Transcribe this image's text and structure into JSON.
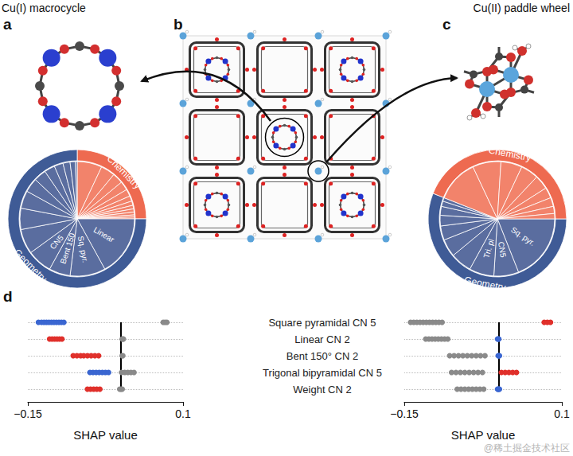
{
  "panels": {
    "a": {
      "letter": "a",
      "title": "Cu(I) macrocycle"
    },
    "b": {
      "letter": "b"
    },
    "c": {
      "letter": "c",
      "title": "Cu(II) paddle wheel"
    },
    "d": {
      "letter": "d"
    }
  },
  "watermark": "@稀土掘金技术社区",
  "chart_data": [
    {
      "type": "pie",
      "rings": [
        {
          "categories": [
            null,
            null,
            null,
            null,
            null,
            null,
            null,
            null,
            null,
            null,
            null,
            null,
            "Linear",
            "Sq. pyr.",
            "Bent 150",
            "CN5",
            null,
            null,
            null,
            null,
            null,
            null,
            null,
            null,
            null,
            null
          ],
          "values": [
            7,
            4,
            3,
            2.5,
            2,
            1.5,
            1.2,
            1,
            0.9,
            0.8,
            0.6,
            0.5,
            17,
            10,
            6,
            7,
            7,
            6,
            5,
            4,
            3.5,
            3,
            2.5,
            2,
            1.5,
            0.5
          ],
          "colors": [
            "#f2836b",
            "#f2836b",
            "#f2836b",
            "#f2836b",
            "#f2836b",
            "#f2836b",
            "#f2836b",
            "#f2836b",
            "#f2836b",
            "#f2836b",
            "#f2836b",
            "#f2836b",
            "#5a6d9f",
            "#5a6d9f",
            "#5a6d9f",
            "#5a6d9f",
            "#5a6d9f",
            "#5a6d9f",
            "#5a6d9f",
            "#5a6d9f",
            "#5a6d9f",
            "#5a6d9f",
            "#5a6d9f",
            "#5a6d9f",
            "#5a6d9f",
            "#5a6d9f"
          ]
        },
        {
          "categories": [
            "Chemistry",
            "Geometry"
          ],
          "values": [
            25,
            75
          ],
          "colors": [
            "#ee6a50",
            "#3f5b96"
          ]
        }
      ]
    },
    {
      "type": "pie",
      "rings": [
        {
          "categories": [
            "Sq. pyr.",
            "CN5",
            "Tri. pl",
            null,
            null,
            null,
            null,
            null,
            null,
            null,
            null,
            null,
            null,
            null,
            null,
            null,
            null,
            null,
            null
          ],
          "values": [
            19,
            7,
            7,
            6,
            5,
            4,
            3,
            2.5,
            1.5,
            1,
            12,
            8,
            6,
            5,
            4,
            3,
            2.5,
            2,
            1.5
          ],
          "colors": [
            "#5a6d9f",
            "#5a6d9f",
            "#5a6d9f",
            "#5a6d9f",
            "#5a6d9f",
            "#5a6d9f",
            "#5a6d9f",
            "#5a6d9f",
            "#5a6d9f",
            "#5a6d9f",
            "#f2836b",
            "#f2836b",
            "#f2836b",
            "#f2836b",
            "#f2836b",
            "#f2836b",
            "#f2836b",
            "#f2836b",
            "#f2836b"
          ]
        },
        {
          "categories": [
            "Geometry",
            "Chemistry"
          ],
          "values": [
            56,
            44
          ],
          "colors": [
            "#3f5b96",
            "#ee6a50"
          ]
        }
      ]
    },
    {
      "type": "scatter",
      "categories": [
        "Square pyramidal CN 5",
        "Linear CN 2",
        "Bent 150° CN 2",
        "Trigonal bipyramidal CN 5",
        "Weight CN 2"
      ],
      "xlim": [
        -0.15,
        0.1
      ],
      "xticks": [
        {
          "value": -0.15,
          "label": "−0.15"
        },
        0.1
      ],
      "xlabel": "SHAP value",
      "reference_line": 0,
      "grid": true,
      "series": [
        {
          "color": "#8a8a8a",
          "values": [
            [
              0.068,
              "Square pyramidal CN 5"
            ],
            [
              0.071,
              "Square pyramidal CN 5"
            ],
            [
              0.074,
              "Square pyramidal CN 5"
            ],
            [
              0.002,
              "Linear CN 2"
            ],
            [
              0.003,
              "Linear CN 2"
            ],
            [
              0.004,
              "Linear CN 2"
            ],
            [
              0.002,
              "Bent 150° CN 2"
            ],
            [
              0.003,
              "Bent 150° CN 2"
            ],
            [
              0.001,
              "Trigonal bipyramidal CN 5"
            ],
            [
              0.006,
              "Trigonal bipyramidal CN 5"
            ],
            [
              0.011,
              "Trigonal bipyramidal CN 5"
            ],
            [
              0.016,
              "Trigonal bipyramidal CN 5"
            ],
            [
              0.021,
              "Trigonal bipyramidal CN 5"
            ],
            [
              -0.002,
              "Weight CN 2"
            ],
            [
              0,
              "Weight CN 2"
            ],
            [
              0.002,
              "Weight CN 2"
            ]
          ]
        },
        {
          "color": "#3a66d1",
          "values": [
            [
              -0.133,
              "Square pyramidal CN 5"
            ],
            [
              -0.128,
              "Square pyramidal CN 5"
            ],
            [
              -0.124,
              "Square pyramidal CN 5"
            ],
            [
              -0.12,
              "Square pyramidal CN 5"
            ],
            [
              -0.116,
              "Square pyramidal CN 5"
            ],
            [
              -0.112,
              "Square pyramidal CN 5"
            ],
            [
              -0.108,
              "Square pyramidal CN 5"
            ],
            [
              -0.104,
              "Square pyramidal CN 5"
            ],
            [
              -0.1,
              "Square pyramidal CN 5"
            ],
            [
              -0.096,
              "Square pyramidal CN 5"
            ],
            [
              -0.092,
              "Square pyramidal CN 5"
            ],
            [
              -0.05,
              "Trigonal bipyramidal CN 5"
            ],
            [
              -0.045,
              "Trigonal bipyramidal CN 5"
            ],
            [
              -0.04,
              "Trigonal bipyramidal CN 5"
            ],
            [
              -0.035,
              "Trigonal bipyramidal CN 5"
            ],
            [
              -0.03,
              "Trigonal bipyramidal CN 5"
            ],
            [
              -0.025,
              "Trigonal bipyramidal CN 5"
            ],
            [
              -0.02,
              "Trigonal bipyramidal CN 5"
            ]
          ]
        },
        {
          "color": "#e0302b",
          "values": [
            [
              -0.115,
              "Linear CN 2"
            ],
            [
              -0.111,
              "Linear CN 2"
            ],
            [
              -0.107,
              "Linear CN 2"
            ],
            [
              -0.103,
              "Linear CN 2"
            ],
            [
              -0.099,
              "Linear CN 2"
            ],
            [
              -0.095,
              "Linear CN 2"
            ],
            [
              -0.077,
              "Bent 150° CN 2"
            ],
            [
              -0.071,
              "Bent 150° CN 2"
            ],
            [
              -0.065,
              "Bent 150° CN 2"
            ],
            [
              -0.06,
              "Bent 150° CN 2"
            ],
            [
              -0.054,
              "Bent 150° CN 2"
            ],
            [
              -0.048,
              "Bent 150° CN 2"
            ],
            [
              -0.042,
              "Bent 150° CN 2"
            ],
            [
              -0.036,
              "Bent 150° CN 2"
            ],
            [
              -0.054,
              "Weight CN 2"
            ],
            [
              -0.049,
              "Weight CN 2"
            ],
            [
              -0.044,
              "Weight CN 2"
            ],
            [
              -0.039,
              "Weight CN 2"
            ],
            [
              -0.034,
              "Weight CN 2"
            ]
          ]
        }
      ]
    },
    {
      "type": "scatter",
      "categories": [
        "Square pyramidal CN 5",
        "Linear CN 2",
        "Bent 150° CN 2",
        "Trigonal bipyramidal CN 5",
        "Weight CN 2"
      ],
      "xlim": [
        -0.15,
        0.1
      ],
      "xticks": [
        {
          "value": -0.15,
          "label": "−0.15"
        },
        0.1
      ],
      "xlabel": "SHAP value",
      "reference_line": 0,
      "grid": true,
      "tick_labels": "x",
      "series": [
        {
          "color": "#8a8a8a",
          "values": [
            [
              -0.14,
              "Square pyramidal CN 5"
            ],
            [
              -0.135,
              "Square pyramidal CN 5"
            ],
            [
              -0.13,
              "Square pyramidal CN 5"
            ],
            [
              -0.125,
              "Square pyramidal CN 5"
            ],
            [
              -0.12,
              "Square pyramidal CN 5"
            ],
            [
              -0.115,
              "Square pyramidal CN 5"
            ],
            [
              -0.11,
              "Square pyramidal CN 5"
            ],
            [
              -0.105,
              "Square pyramidal CN 5"
            ],
            [
              -0.1,
              "Square pyramidal CN 5"
            ],
            [
              -0.095,
              "Square pyramidal CN 5"
            ],
            [
              -0.09,
              "Square pyramidal CN 5"
            ],
            [
              -0.116,
              "Linear CN 2"
            ],
            [
              -0.111,
              "Linear CN 2"
            ],
            [
              -0.106,
              "Linear CN 2"
            ],
            [
              -0.101,
              "Linear CN 2"
            ],
            [
              -0.096,
              "Linear CN 2"
            ],
            [
              -0.091,
              "Linear CN 2"
            ],
            [
              -0.086,
              "Linear CN 2"
            ],
            [
              -0.081,
              "Linear CN 2"
            ],
            [
              -0.078,
              "Bent 150° CN 2"
            ],
            [
              -0.071,
              "Bent 150° CN 2"
            ],
            [
              -0.064,
              "Bent 150° CN 2"
            ],
            [
              -0.057,
              "Bent 150° CN 2"
            ],
            [
              -0.05,
              "Bent 150° CN 2"
            ],
            [
              -0.043,
              "Bent 150° CN 2"
            ],
            [
              -0.036,
              "Bent 150° CN 2"
            ],
            [
              -0.029,
              "Bent 150° CN 2"
            ],
            [
              -0.022,
              "Bent 150° CN 2"
            ],
            [
              -0.075,
              "Trigonal bipyramidal CN 5"
            ],
            [
              -0.068,
              "Trigonal bipyramidal CN 5"
            ],
            [
              -0.061,
              "Trigonal bipyramidal CN 5"
            ],
            [
              -0.054,
              "Trigonal bipyramidal CN 5"
            ],
            [
              -0.047,
              "Trigonal bipyramidal CN 5"
            ],
            [
              -0.04,
              "Trigonal bipyramidal CN 5"
            ],
            [
              -0.033,
              "Trigonal bipyramidal CN 5"
            ],
            [
              -0.026,
              "Trigonal bipyramidal CN 5"
            ],
            [
              -0.066,
              "Weight CN 2"
            ],
            [
              -0.06,
              "Weight CN 2"
            ],
            [
              -0.054,
              "Weight CN 2"
            ],
            [
              -0.048,
              "Weight CN 2"
            ],
            [
              -0.042,
              "Weight CN 2"
            ],
            [
              -0.036,
              "Weight CN 2"
            ],
            [
              -0.03,
              "Weight CN 2"
            ],
            [
              -0.024,
              "Weight CN 2"
            ]
          ]
        },
        {
          "color": "#3a66d1",
          "values": [
            [
              -0.002,
              "Linear CN 2"
            ],
            [
              -0.001,
              "Linear CN 2"
            ],
            [
              0,
              "Linear CN 2"
            ],
            [
              -0.001,
              "Bent 150° CN 2"
            ],
            [
              0,
              "Bent 150° CN 2"
            ],
            [
              0.001,
              "Bent 150° CN 2"
            ],
            [
              -0.002,
              "Weight CN 2"
            ],
            [
              -0.001,
              "Weight CN 2"
            ],
            [
              0,
              "Weight CN 2"
            ],
            [
              0.001,
              "Weight CN 2"
            ]
          ]
        },
        {
          "color": "#e0302b",
          "values": [
            [
              0.072,
              "Square pyramidal CN 5"
            ],
            [
              0.077,
              "Square pyramidal CN 5"
            ],
            [
              0.082,
              "Square pyramidal CN 5"
            ],
            [
              0.004,
              "Trigonal bipyramidal CN 5"
            ],
            [
              0.01,
              "Trigonal bipyramidal CN 5"
            ],
            [
              0.016,
              "Trigonal bipyramidal CN 5"
            ],
            [
              0.022,
              "Trigonal bipyramidal CN 5"
            ],
            [
              0.028,
              "Trigonal bipyramidal CN 5"
            ]
          ]
        }
      ]
    }
  ]
}
